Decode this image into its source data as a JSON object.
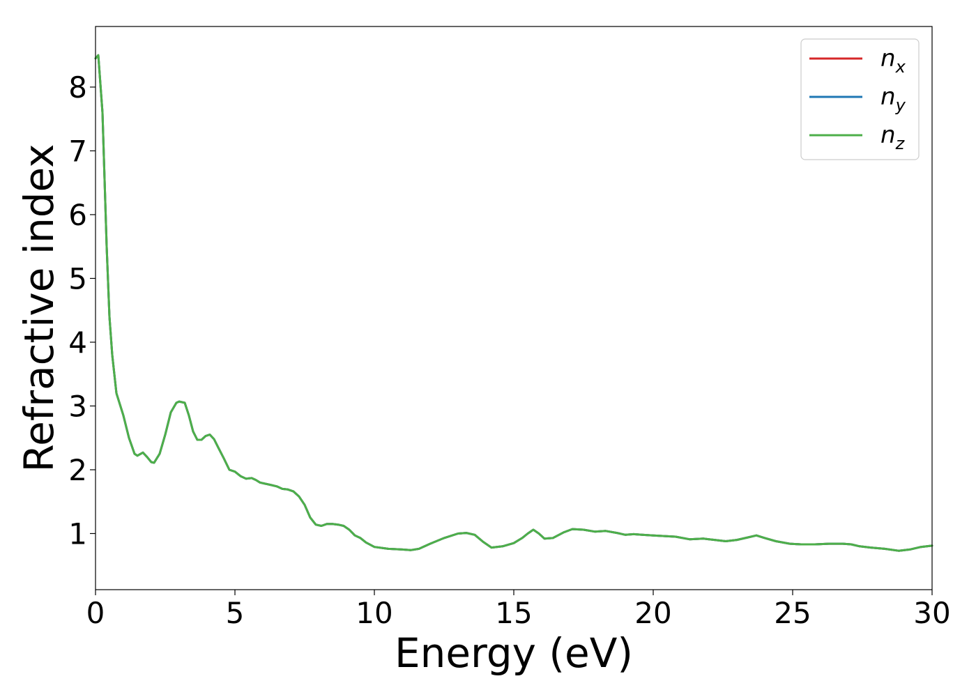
{
  "chart_data": {
    "type": "line",
    "xlabel": "Energy (eV)",
    "ylabel": "Refractive index",
    "xlim": [
      0,
      30
    ],
    "ylim": [
      0.12,
      8.95
    ],
    "xticks": [
      0,
      5,
      10,
      15,
      20,
      25,
      30
    ],
    "yticks": [
      1,
      2,
      3,
      4,
      5,
      6,
      7,
      8
    ],
    "grid": false,
    "legend_position": "top-right",
    "x": [
      0,
      0.1,
      0.25,
      0.4,
      0.5,
      0.6,
      0.75,
      1.0,
      1.2,
      1.4,
      1.5,
      1.7,
      1.85,
      2.0,
      2.1,
      2.3,
      2.5,
      2.7,
      2.9,
      3.0,
      3.2,
      3.35,
      3.5,
      3.65,
      3.8,
      3.95,
      4.1,
      4.25,
      4.4,
      4.6,
      4.8,
      5.0,
      5.2,
      5.4,
      5.6,
      5.75,
      5.9,
      6.1,
      6.3,
      6.5,
      6.7,
      6.9,
      7.1,
      7.3,
      7.5,
      7.7,
      7.9,
      8.1,
      8.3,
      8.5,
      8.7,
      8.9,
      9.1,
      9.3,
      9.5,
      9.7,
      10.0,
      10.5,
      11.0,
      11.3,
      11.6,
      12.0,
      12.5,
      13.0,
      13.3,
      13.6,
      13.9,
      14.2,
      14.6,
      15.0,
      15.3,
      15.5,
      15.7,
      15.9,
      16.1,
      16.4,
      16.8,
      17.1,
      17.5,
      17.9,
      18.3,
      18.7,
      19.0,
      19.3,
      19.6,
      20.0,
      20.4,
      20.8,
      21.3,
      21.8,
      22.2,
      22.6,
      23.0,
      23.4,
      23.7,
      24.0,
      24.4,
      24.9,
      25.3,
      25.8,
      26.3,
      26.8,
      27.1,
      27.4,
      27.8,
      28.3,
      28.8,
      29.2,
      29.6,
      30.0
    ],
    "series": [
      {
        "name": "n_x",
        "color": "#d62728",
        "values": [
          8.45,
          8.5,
          7.6,
          5.5,
          4.4,
          3.8,
          3.2,
          2.85,
          2.5,
          2.25,
          2.22,
          2.27,
          2.2,
          2.12,
          2.11,
          2.25,
          2.55,
          2.9,
          3.05,
          3.07,
          3.05,
          2.85,
          2.6,
          2.47,
          2.47,
          2.53,
          2.55,
          2.48,
          2.35,
          2.18,
          2.0,
          1.97,
          1.9,
          1.86,
          1.87,
          1.84,
          1.8,
          1.78,
          1.76,
          1.74,
          1.7,
          1.69,
          1.66,
          1.58,
          1.45,
          1.25,
          1.14,
          1.12,
          1.15,
          1.15,
          1.14,
          1.12,
          1.06,
          0.97,
          0.93,
          0.86,
          0.79,
          0.76,
          0.75,
          0.74,
          0.76,
          0.84,
          0.93,
          1.0,
          1.01,
          0.98,
          0.87,
          0.78,
          0.8,
          0.85,
          0.93,
          1.0,
          1.06,
          1.0,
          0.92,
          0.93,
          1.02,
          1.07,
          1.06,
          1.03,
          1.04,
          1.01,
          0.98,
          0.99,
          0.98,
          0.97,
          0.96,
          0.95,
          0.91,
          0.92,
          0.9,
          0.88,
          0.9,
          0.94,
          0.97,
          0.93,
          0.88,
          0.84,
          0.83,
          0.83,
          0.84,
          0.84,
          0.83,
          0.8,
          0.78,
          0.76,
          0.73,
          0.75,
          0.79,
          0.81
        ]
      },
      {
        "name": "n_y",
        "color": "#1f77b4",
        "values": [
          8.45,
          8.5,
          7.6,
          5.5,
          4.4,
          3.8,
          3.2,
          2.85,
          2.5,
          2.25,
          2.22,
          2.27,
          2.2,
          2.12,
          2.11,
          2.25,
          2.55,
          2.9,
          3.05,
          3.07,
          3.05,
          2.85,
          2.6,
          2.47,
          2.47,
          2.53,
          2.55,
          2.48,
          2.35,
          2.18,
          2.0,
          1.97,
          1.9,
          1.86,
          1.87,
          1.84,
          1.8,
          1.78,
          1.76,
          1.74,
          1.7,
          1.69,
          1.66,
          1.58,
          1.45,
          1.25,
          1.14,
          1.12,
          1.15,
          1.15,
          1.14,
          1.12,
          1.06,
          0.97,
          0.93,
          0.86,
          0.79,
          0.76,
          0.75,
          0.74,
          0.76,
          0.84,
          0.93,
          1.0,
          1.01,
          0.98,
          0.87,
          0.78,
          0.8,
          0.85,
          0.93,
          1.0,
          1.06,
          1.0,
          0.92,
          0.93,
          1.02,
          1.07,
          1.06,
          1.03,
          1.04,
          1.01,
          0.98,
          0.99,
          0.98,
          0.97,
          0.96,
          0.95,
          0.91,
          0.92,
          0.9,
          0.88,
          0.9,
          0.94,
          0.97,
          0.93,
          0.88,
          0.84,
          0.83,
          0.83,
          0.84,
          0.84,
          0.83,
          0.8,
          0.78,
          0.76,
          0.73,
          0.75,
          0.79,
          0.81
        ]
      },
      {
        "name": "n_z",
        "color": "#4daf4a",
        "values": [
          8.45,
          8.5,
          7.6,
          5.5,
          4.4,
          3.8,
          3.2,
          2.85,
          2.5,
          2.25,
          2.22,
          2.27,
          2.2,
          2.12,
          2.11,
          2.25,
          2.55,
          2.9,
          3.05,
          3.07,
          3.05,
          2.85,
          2.6,
          2.47,
          2.47,
          2.53,
          2.55,
          2.48,
          2.35,
          2.18,
          2.0,
          1.97,
          1.9,
          1.86,
          1.87,
          1.84,
          1.8,
          1.78,
          1.76,
          1.74,
          1.7,
          1.69,
          1.66,
          1.58,
          1.45,
          1.25,
          1.14,
          1.12,
          1.15,
          1.15,
          1.14,
          1.12,
          1.06,
          0.97,
          0.93,
          0.86,
          0.79,
          0.76,
          0.75,
          0.74,
          0.76,
          0.84,
          0.93,
          1.0,
          1.01,
          0.98,
          0.87,
          0.78,
          0.8,
          0.85,
          0.93,
          1.0,
          1.06,
          1.0,
          0.92,
          0.93,
          1.02,
          1.07,
          1.06,
          1.03,
          1.04,
          1.01,
          0.98,
          0.99,
          0.98,
          0.97,
          0.96,
          0.95,
          0.91,
          0.92,
          0.9,
          0.88,
          0.9,
          0.94,
          0.97,
          0.93,
          0.88,
          0.84,
          0.83,
          0.83,
          0.84,
          0.84,
          0.83,
          0.8,
          0.78,
          0.76,
          0.73,
          0.75,
          0.79,
          0.81
        ]
      }
    ],
    "legend": [
      {
        "symbol": "n",
        "sub": "x",
        "color": "#d62728"
      },
      {
        "symbol": "n",
        "sub": "y",
        "color": "#1f77b4"
      },
      {
        "symbol": "n",
        "sub": "z",
        "color": "#4daf4a"
      }
    ]
  }
}
